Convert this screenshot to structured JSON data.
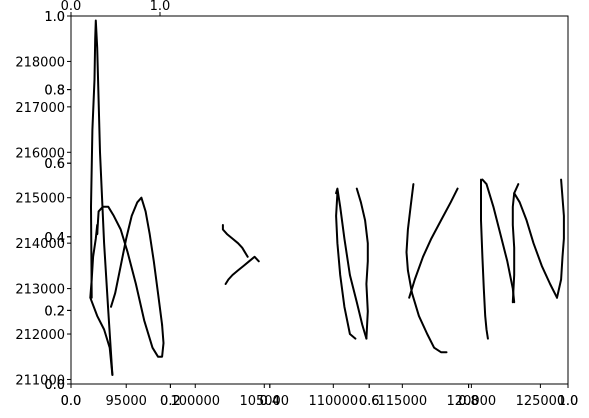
{
  "chart_data": {
    "type": "line",
    "title": "",
    "xlabel": "",
    "ylabel": "",
    "grid": false,
    "legend": "none",
    "colors": {
      "line": "#000000",
      "axes": "#000000",
      "background": "#ffffff"
    },
    "axes": [
      {
        "role": "data",
        "xlim": [
          91000,
          127000
        ],
        "ylim": [
          210900,
          219000
        ],
        "xticks": [
          {
            "value": 95000,
            "label": "95000"
          },
          {
            "value": 100000,
            "label": "100000"
          },
          {
            "value": 105000,
            "label": "105000"
          },
          {
            "value": 110000,
            "label": "110000"
          },
          {
            "value": 115000,
            "label": "115000"
          },
          {
            "value": 120000,
            "label": "120000"
          },
          {
            "value": 125000,
            "label": "125000"
          }
        ],
        "yticks": [
          {
            "value": 211000,
            "label": "211000"
          },
          {
            "value": 212000,
            "label": "212000"
          },
          {
            "value": 213000,
            "label": "213000"
          },
          {
            "value": 214000,
            "label": "214000"
          },
          {
            "value": 215000,
            "label": "215000"
          },
          {
            "value": 216000,
            "label": "216000"
          },
          {
            "value": 217000,
            "label": "217000"
          },
          {
            "value": 218000,
            "label": "218000"
          }
        ]
      },
      {
        "role": "overlay-a",
        "xlim": [
          0,
          1
        ],
        "ylim": [
          0,
          1
        ],
        "xticks": [
          {
            "value": 0.0,
            "label": "0.0"
          },
          {
            "value": 0.2,
            "label": "0.2"
          },
          {
            "value": 0.4,
            "label": "0.4"
          },
          {
            "value": 0.6,
            "label": "0.6"
          },
          {
            "value": 0.8,
            "label": "0.8"
          },
          {
            "value": 1.0,
            "label": "1.0"
          }
        ],
        "yticks": [
          {
            "value": 0.0,
            "label": "0.0"
          },
          {
            "value": 0.2,
            "label": "0.2"
          },
          {
            "value": 0.4,
            "label": "0.4"
          },
          {
            "value": 0.6,
            "label": "0.6"
          },
          {
            "value": 0.8,
            "label": "0.8"
          },
          {
            "value": 1.0,
            "label": "1.0"
          }
        ]
      },
      {
        "role": "overlay-b",
        "xlim": [
          0,
          1
        ],
        "ylim": [
          0,
          1
        ],
        "xticks": [
          {
            "value": 0.0,
            "label": "0.0"
          },
          {
            "value": 0.2,
            "label": "0.2"
          },
          {
            "value": 0.4,
            "label": "0.4"
          },
          {
            "value": 0.6,
            "label": "0.6"
          },
          {
            "value": 0.8,
            "label": "0.8"
          },
          {
            "value": 1.0,
            "label": "1.0"
          }
        ],
        "yticks": [
          {
            "value": 0.0,
            "label": "0.0"
          },
          {
            "value": 0.2,
            "label": "0.2"
          },
          {
            "value": 0.4,
            "label": "0.4"
          },
          {
            "value": 0.6,
            "label": "0.6"
          },
          {
            "value": 0.8,
            "label": "0.8"
          },
          {
            "value": 1.0,
            "label": "1.0"
          }
        ]
      },
      {
        "role": "inset",
        "xlim": [
          0,
          1
        ],
        "ylim": [
          0,
          1
        ],
        "xticks": [
          {
            "value": 0.0,
            "label": "0.0"
          },
          {
            "value": 1.0,
            "label": "1.0"
          }
        ],
        "yticks": [
          {
            "value": 0.0,
            "label": "0.0"
          }
        ]
      }
    ],
    "series": [
      {
        "x": [
          92500,
          92450,
          92550,
          92700,
          92750,
          92800,
          92800,
          92900,
          93100,
          93400,
          93700,
          94000
        ],
        "y": [
          212800,
          214800,
          216500,
          217600,
          218500,
          218900,
          218900,
          218300,
          216000,
          214000,
          212500,
          211100
        ]
      },
      {
        "x": [
          94000,
          93800,
          93400,
          92900,
          92400,
          92500,
          92600,
          92800,
          92900,
          92900
        ],
        "y": [
          211100,
          211700,
          212100,
          212400,
          212800,
          213200,
          213700,
          214100,
          214400,
          214200
        ]
      },
      {
        "x": [
          92900,
          93000,
          93300,
          93700,
          94100,
          94600,
          95100,
          95700,
          96300,
          96900,
          97300,
          97600,
          97700,
          97600
        ],
        "y": [
          214200,
          214700,
          214800,
          214800,
          214600,
          214300,
          213800,
          213100,
          212300,
          211700,
          211500,
          211500,
          211800,
          212200
        ]
      },
      {
        "x": [
          97600,
          97300,
          97000,
          96700,
          96400,
          96100,
          95800,
          95400,
          95000,
          94600,
          94200,
          93900
        ],
        "y": [
          212200,
          212900,
          213600,
          214200,
          214700,
          215000,
          214900,
          214600,
          214100,
          213500,
          212900,
          212600
        ]
      },
      {
        "x": [
          102000,
          102000,
          102300,
          102700,
          103100,
          103400,
          103600,
          103800
        ],
        "y": [
          214400,
          214300,
          214200,
          214100,
          214000,
          213900,
          213800,
          213700
        ]
      },
      {
        "x": [
          102200,
          102400,
          102700,
          103100,
          103500,
          103900,
          104300,
          104600
        ],
        "y": [
          213100,
          213200,
          213300,
          213400,
          213500,
          213600,
          213700,
          213600
        ]
      },
      {
        "x": [
          110300,
          110200,
          110300,
          110500,
          110800,
          111200,
          111600
        ],
        "y": [
          215100,
          214600,
          214000,
          213300,
          212600,
          212000,
          211900
        ]
      },
      {
        "x": [
          110200,
          110300,
          110500,
          110800,
          111200,
          111700,
          112100,
          112400
        ],
        "y": [
          215100,
          215200,
          214800,
          214100,
          213300,
          212700,
          212200,
          211900
        ]
      },
      {
        "x": [
          112400,
          112500,
          112400,
          112500,
          112500,
          112300,
          112000,
          111700
        ],
        "y": [
          211900,
          212500,
          213100,
          213600,
          214000,
          214500,
          214900,
          215200
        ]
      },
      {
        "x": [
          115800,
          115600,
          115400,
          115300,
          115400,
          115700,
          116200,
          116800,
          117300,
          117800,
          118200
        ],
        "y": [
          215300,
          214800,
          214300,
          213800,
          213400,
          212900,
          212400,
          212000,
          211700,
          211600,
          211600
        ]
      },
      {
        "x": [
          115500,
          115900,
          116500,
          117100,
          117800,
          118500,
          119000
        ],
        "y": [
          212800,
          213200,
          213700,
          214100,
          214500,
          214900,
          215200
        ]
      },
      {
        "x": [
          120700,
          120700,
          120800,
          120900,
          121000,
          121100,
          121200
        ],
        "y": [
          215400,
          214500,
          213700,
          213000,
          212400,
          212100,
          211900
        ]
      },
      {
        "x": [
          120800,
          121100,
          121600,
          122100,
          122600,
          123000,
          123100
        ],
        "y": [
          215400,
          215300,
          214800,
          214200,
          213600,
          213000,
          212700
        ]
      },
      {
        "x": [
          123000,
          123100,
          123100,
          123000,
          123000,
          123100,
          123400
        ],
        "y": [
          212700,
          213300,
          213900,
          214400,
          214800,
          215100,
          215300
        ]
      },
      {
        "x": [
          123100,
          123500,
          124000,
          124500,
          125100,
          125700,
          126200
        ],
        "y": [
          215100,
          214900,
          214500,
          214000,
          213500,
          213100,
          212800
        ]
      },
      {
        "x": [
          126200,
          126500,
          126600,
          126700,
          126700,
          126600,
          126500
        ],
        "y": [
          212800,
          213200,
          213700,
          214100,
          214600,
          215000,
          215400
        ]
      }
    ]
  }
}
